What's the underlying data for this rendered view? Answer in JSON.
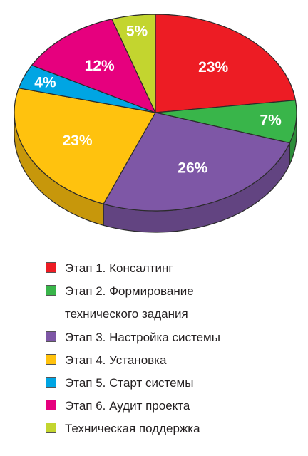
{
  "chart_data": {
    "type": "pie",
    "title": "",
    "slices": [
      {
        "label": "Этап 1. Консалтинг",
        "value": 23,
        "value_label": "23%",
        "color": "#ed1c24"
      },
      {
        "label": "Этап 2. Формирование технического задания",
        "value": 7,
        "value_label": "7%",
        "color": "#39b54a"
      },
      {
        "label": "Этап 3. Настройка системы",
        "value": 26,
        "value_label": "26%",
        "color": "#7e57a6"
      },
      {
        "label": "Этап 4. Установка",
        "value": 23,
        "value_label": "23%",
        "color": "#ffc20e"
      },
      {
        "label": "Этап 5. Старт системы",
        "value": 4,
        "value_label": "4%",
        "color": "#00a5e3"
      },
      {
        "label": "Этап 6. Аудит проекта",
        "value": 12,
        "value_label": "12%",
        "color": "#e6007e"
      },
      {
        "label": "Техническая поддержка",
        "value": 5,
        "value_label": "5%",
        "color": "#c3d52f"
      }
    ],
    "legend_position": "bottom",
    "style": "3d-tilted"
  }
}
